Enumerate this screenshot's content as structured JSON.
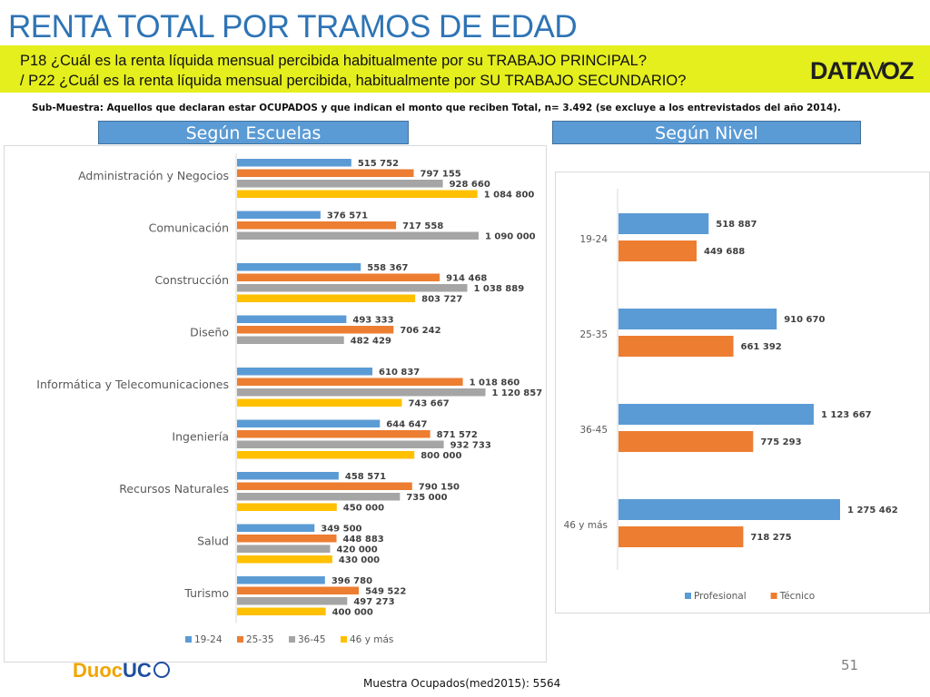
{
  "header": {
    "title": "RENTA TOTAL POR TRAMOS DE EDAD",
    "question_1": "P18 ¿Cuál es la renta líquida mensual percibida habitualmente por su TRABAJO PRINCIPAL?",
    "question_2": "/ P22 ¿Cuál es la  renta líquida mensual percibida, habitualmente por  SU TRABAJO SECUNDARIO?",
    "logo_left": "DATA",
    "logo_mid": "V",
    "logo_right": "OZ",
    "subsample": "Sub-Muestra: Aquellos que declaran estar OCUPADOS y que indican el monto que reciben Total, n= 3.492 (se excluye a los entrevistados del año 2014)."
  },
  "panels": {
    "left_label": "Según Escuelas",
    "right_label": "Según Nivel"
  },
  "footer": {
    "logo_a": "Duoc",
    "logo_b": "UC",
    "page_number": "51",
    "sample_note": "Muestra Ocupados(med2015): 5564"
  },
  "colors": {
    "series_19_24": "#5b9bd5",
    "series_25_35": "#ed7d31",
    "series_36_45": "#a5a5a5",
    "series_46_mas": "#ffc000",
    "header_band": "#e5ef1d",
    "title": "#2e74b5"
  },
  "chart_data": [
    {
      "type": "bar",
      "orientation": "horizontal",
      "title": "",
      "xlabel": "",
      "ylabel": "",
      "grid": false,
      "legend_position": "bottom",
      "categories": [
        "Administración y Negocios",
        "Comunicación",
        "Construcción",
        "Diseño",
        "Informática y Telecomunicaciones",
        "Ingeniería",
        "Recursos Naturales",
        "Salud",
        "Turismo"
      ],
      "xlim": [
        0,
        1200000
      ],
      "series": [
        {
          "name": "19-24",
          "values": [
            515752,
            376571,
            558367,
            493333,
            610837,
            644647,
            458571,
            349500,
            396780
          ],
          "labels": [
            "515 752",
            "376 571",
            "558 367",
            "493 333",
            "610 837",
            "644 647",
            "458 571",
            "349 500",
            "396 780"
          ]
        },
        {
          "name": "25-35",
          "values": [
            797155,
            717558,
            914468,
            706242,
            1018860,
            871572,
            790150,
            448883,
            549522
          ],
          "labels": [
            "797 155",
            "717 558",
            "914 468",
            "706 242",
            "1 018 860",
            "871 572",
            "790 150",
            "448 883",
            "549 522"
          ]
        },
        {
          "name": "36-45",
          "values": [
            928660,
            1090000,
            1038889,
            482429,
            1120857,
            932733,
            735000,
            420000,
            497273
          ],
          "labels": [
            "928 660",
            "1 090 000",
            "1 038 889",
            "482 429",
            "1 120 857",
            "932 733",
            "735 000",
            "420 000",
            "497 273"
          ]
        },
        {
          "name": "46 y más",
          "values": [
            1084800,
            null,
            803727,
            null,
            743667,
            800000,
            450000,
            430000,
            400000
          ],
          "labels": [
            "1 084 800",
            "",
            "803 727",
            "",
            "743 667",
            "800 000",
            "450 000",
            "430 000",
            "400 000"
          ]
        }
      ]
    },
    {
      "type": "bar",
      "orientation": "horizontal",
      "title": "",
      "xlabel": "",
      "ylabel": "",
      "grid": false,
      "legend_position": "bottom",
      "categories": [
        "19-24",
        "25-35",
        "36-45",
        "46 y más"
      ],
      "xlim": [
        0,
        1300000
      ],
      "series": [
        {
          "name": "Profesional",
          "values": [
            518887,
            910670,
            1123667,
            1275462
          ],
          "labels": [
            "518 887",
            "910 670",
            "1 123 667",
            "1 275 462"
          ]
        },
        {
          "name": "Técnico",
          "values": [
            449688,
            661392,
            775293,
            718275
          ],
          "labels": [
            "449 688",
            "661 392",
            "775 293",
            "718 275"
          ]
        }
      ]
    }
  ]
}
